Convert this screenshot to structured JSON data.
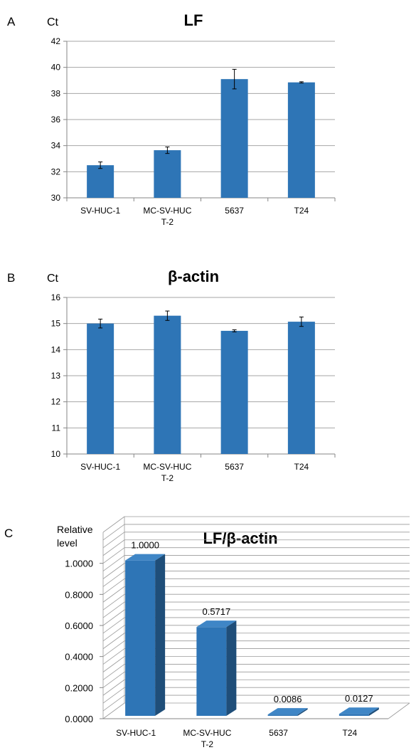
{
  "panels": [
    {
      "letter": "A",
      "unit_label": "Ct",
      "chart_data": {
        "type": "bar",
        "title": "LF",
        "ylabel": "Ct",
        "categories": [
          "SV-HUC-1",
          "MC-SV-HUC T-2",
          "5637",
          "T24"
        ],
        "category_lines": [
          [
            "SV-HUC-1"
          ],
          [
            "MC-SV-HUC",
            "T-2"
          ],
          [
            "5637"
          ],
          [
            "T24"
          ]
        ],
        "values": [
          32.5,
          33.65,
          39.1,
          38.85
        ],
        "errors": [
          0.25,
          0.25,
          0.75,
          0.05
        ],
        "ylim": [
          30,
          42
        ],
        "yticks": [
          30,
          32,
          34,
          36,
          38,
          40,
          42
        ],
        "grid": true,
        "bar_color": "#2e75b6"
      }
    },
    {
      "letter": "B",
      "unit_label": "Ct",
      "chart_data": {
        "type": "bar",
        "title": "β-actin",
        "ylabel": "Ct",
        "categories": [
          "SV-HUC-1",
          "MC-SV-HUC T-2",
          "5637",
          "T24"
        ],
        "category_lines": [
          [
            "SV-HUC-1"
          ],
          [
            "MC-SV-HUC",
            "T-2"
          ],
          [
            "5637"
          ],
          [
            "T24"
          ]
        ],
        "values": [
          15.0,
          15.3,
          14.72,
          15.07
        ],
        "errors": [
          0.17,
          0.18,
          0.04,
          0.18
        ],
        "ylim": [
          10,
          16
        ],
        "yticks": [
          10,
          11,
          12,
          13,
          14,
          15,
          16
        ],
        "grid": true,
        "bar_color": "#2e75b6"
      }
    },
    {
      "letter": "C",
      "unit_label_lines": [
        "Relative",
        "level"
      ],
      "chart_data": {
        "type": "bar",
        "title": "LF/β-actin",
        "ylabel": "Relative level",
        "categories": [
          "SV-HUC-1",
          "MC-SV-HUC T-2",
          "5637",
          "T24"
        ],
        "category_lines": [
          [
            "SV-HUC-1"
          ],
          [
            "MC-SV-HUC",
            "T-2"
          ],
          [
            "5637"
          ],
          [
            "T24"
          ]
        ],
        "values": [
          1.0,
          0.5717,
          0.0086,
          0.0127
        ],
        "data_labels": [
          "1.0000",
          "0.5717",
          "0.0086",
          "0.0127"
        ],
        "ylim": [
          0,
          1.2
        ],
        "yticks": [
          "0.0000",
          "0.2000",
          "0.4000",
          "0.6000",
          "0.8000",
          "1.0000"
        ],
        "ytick_values": [
          0,
          0.2,
          0.4,
          0.6,
          0.8,
          1.0
        ],
        "grid": true,
        "three_d": true,
        "bar_color": "#2e75b6"
      }
    }
  ]
}
